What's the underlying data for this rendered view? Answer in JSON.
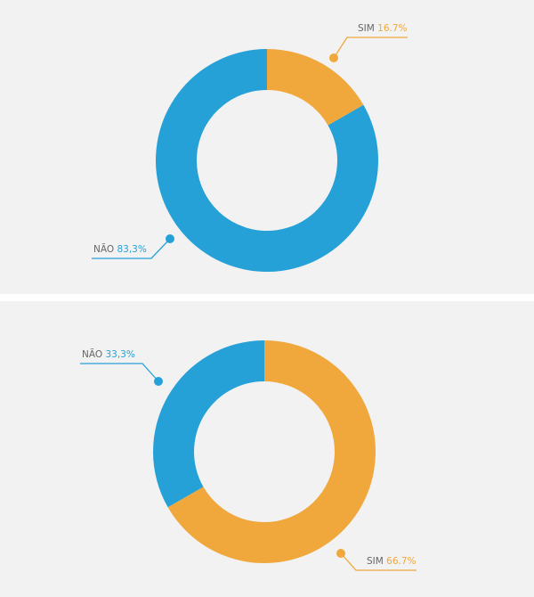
{
  "chart_data": [
    {
      "type": "pie",
      "categories": [
        "SIM",
        "NÃO"
      ],
      "values": [
        16.7,
        83.3
      ],
      "value_labels": [
        "16.7%",
        "83,3%"
      ],
      "colors": [
        "#f0a83c",
        "#25a1d8"
      ]
    },
    {
      "type": "pie",
      "categories": [
        "SIM",
        "NÃO"
      ],
      "values": [
        66.7,
        33.3
      ],
      "value_labels": [
        "66.7%",
        "33,3%"
      ],
      "colors": [
        "#f0a83c",
        "#25a1d8"
      ]
    }
  ]
}
